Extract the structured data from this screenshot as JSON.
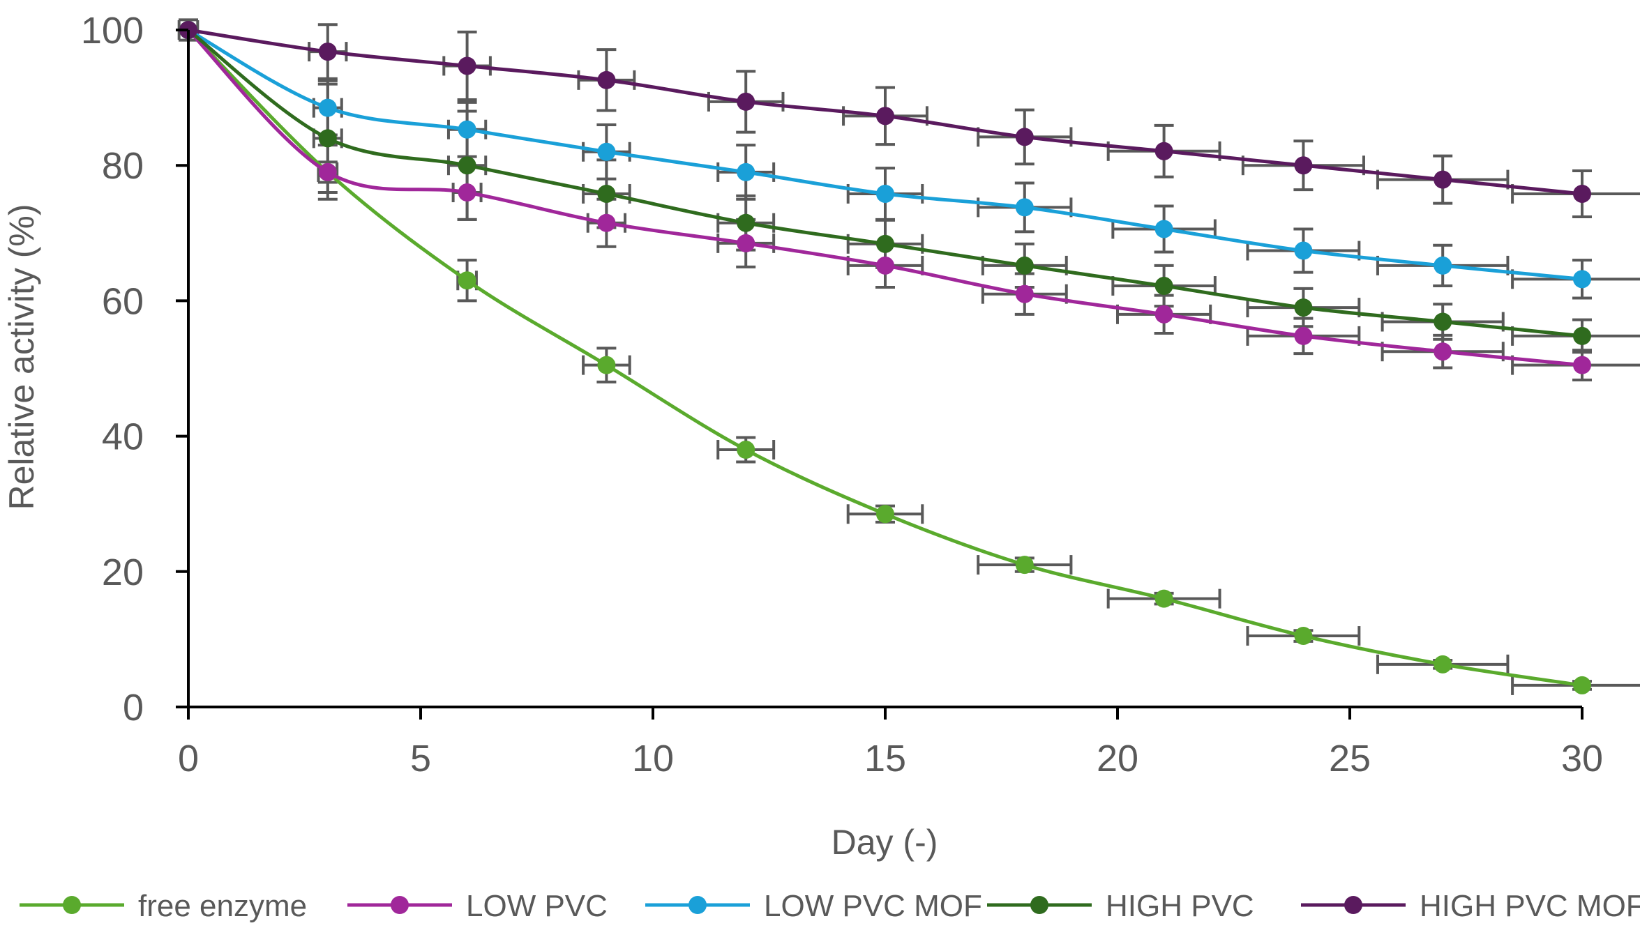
{
  "chart_data": {
    "type": "line",
    "title": "",
    "xlabel": "Day (-)",
    "ylabel": "Relative activity (%)",
    "xlim": [
      0,
      30
    ],
    "ylim": [
      0,
      100
    ],
    "xticks": [
      0,
      5,
      10,
      15,
      20,
      25,
      30
    ],
    "yticks": [
      0,
      20,
      40,
      60,
      80,
      100
    ],
    "grid": false,
    "legend_position": "bottom",
    "x": [
      0,
      3,
      6,
      9,
      12,
      15,
      18,
      21,
      24,
      27,
      30
    ],
    "series": [
      {
        "name": "free enzyme",
        "color": "#5aaa2d",
        "values": [
          100,
          79,
          63,
          50.5,
          38,
          28.5,
          21,
          16,
          10.5,
          6.3,
          3.2
        ],
        "y_error": [
          0,
          1.5,
          3,
          2.5,
          1.8,
          1.2,
          1,
          0.8,
          0.8,
          0.6,
          0.6
        ],
        "x_error": [
          0,
          0.2,
          0.2,
          0.5,
          0.6,
          0.8,
          1,
          1.2,
          1.2,
          1.4,
          1.5
        ]
      },
      {
        "name": "LOW PVC",
        "color": "#a0279a",
        "values": [
          100,
          79,
          76,
          71.5,
          68.5,
          65.2,
          61,
          58,
          54.8,
          52.5,
          50.5
        ],
        "y_error": [
          0,
          4,
          4,
          3.5,
          3.5,
          3.2,
          3,
          2.8,
          2.6,
          2.4,
          2.2
        ],
        "x_error": [
          0,
          0.2,
          0.3,
          0.4,
          0.6,
          0.8,
          0.9,
          1,
          1.2,
          1.3,
          1.5
        ]
      },
      {
        "name": "LOW PVC MOF",
        "color": "#1aa0d8",
        "values": [
          100,
          88.5,
          85.3,
          82,
          79,
          75.8,
          73.8,
          70.6,
          67.4,
          65.2,
          63.2
        ],
        "y_error": [
          0,
          4,
          4,
          4,
          4,
          3.8,
          3.6,
          3.4,
          3.2,
          3,
          2.8
        ],
        "x_error": [
          0,
          0.3,
          0.4,
          0.5,
          0.6,
          0.8,
          1,
          1.1,
          1.2,
          1.4,
          1.5
        ]
      },
      {
        "name": "HIGH PVC",
        "color": "#2f6b1e",
        "values": [
          100,
          84,
          80,
          75.8,
          71.5,
          68.4,
          65.2,
          62.2,
          59,
          56.9,
          54.8
        ],
        "y_error": [
          0,
          8,
          8,
          5,
          4,
          3.5,
          3.2,
          3,
          2.8,
          2.6,
          2.4
        ],
        "x_error": [
          0,
          0.3,
          0.4,
          0.5,
          0.6,
          0.8,
          0.9,
          1.1,
          1.2,
          1.3,
          1.5
        ]
      },
      {
        "name": "HIGH PVC MOF",
        "color": "#5a1a5e",
        "values": [
          100,
          96.8,
          94.7,
          92.6,
          89.4,
          87.3,
          84.2,
          82.1,
          80,
          77.9,
          75.8
        ],
        "y_error": [
          1.5,
          4,
          5,
          4.5,
          4.5,
          4.2,
          4,
          3.8,
          3.6,
          3.5,
          3.4
        ],
        "x_error": [
          0.2,
          0.4,
          0.5,
          0.6,
          0.8,
          0.9,
          1,
          1.2,
          1.3,
          1.4,
          1.5
        ]
      }
    ]
  }
}
